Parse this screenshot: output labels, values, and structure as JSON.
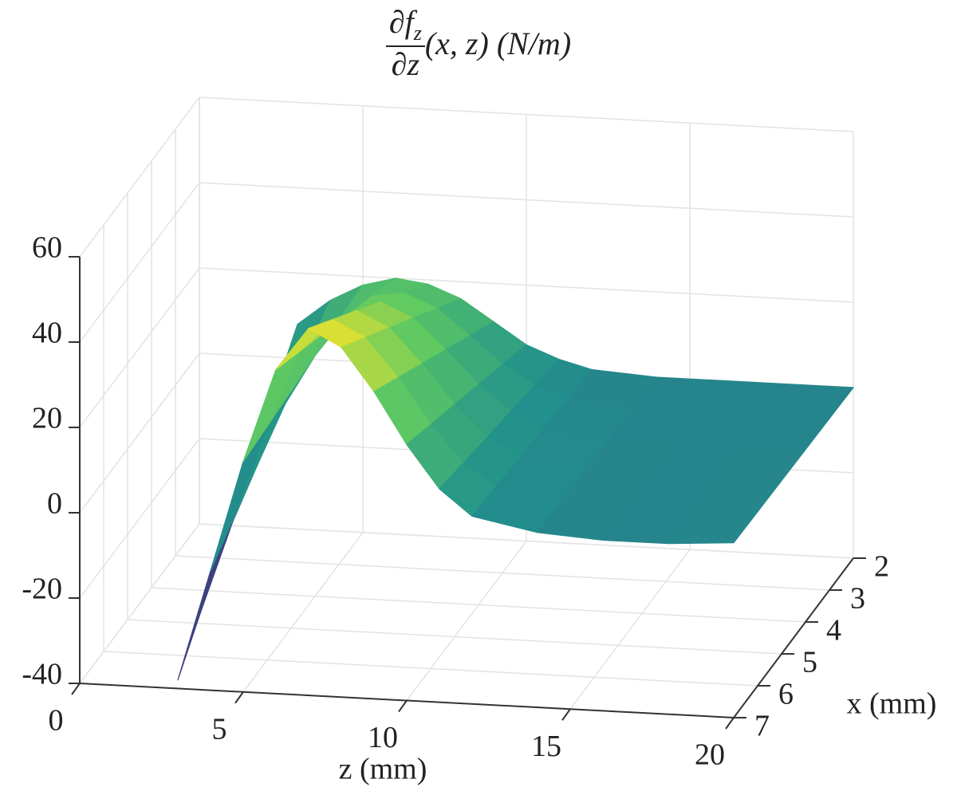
{
  "chart_data": {
    "type": "surface",
    "title": {
      "numerator": "∂f",
      "numerator_sub": "z",
      "denominator": "∂z",
      "rest": "(x, z)  (N/m)"
    },
    "zaxis_label": "z (mm)",
    "xaxis_label": "x (mm)",
    "z": [
      3,
      4,
      5,
      6,
      7,
      8,
      9,
      10,
      11,
      12,
      14,
      16,
      18,
      20
    ],
    "x": [
      2,
      3,
      4,
      5,
      6,
      7
    ],
    "values": [
      [
        8,
        14,
        18,
        20,
        19,
        16,
        11,
        6,
        3,
        1,
        0,
        0,
        0,
        0
      ],
      [
        -1.2,
        8.8,
        17.2,
        23.2,
        24.4,
        21.2,
        15.2,
        8.8,
        4.4,
        1.6,
        0.2,
        0,
        0,
        0.2
      ],
      [
        -10.4,
        3.6,
        16.4,
        26.4,
        29.8,
        26.4,
        19.4,
        11.6,
        5.8,
        2.2,
        0.4,
        0,
        0,
        0.4
      ],
      [
        -19.6,
        -1.6,
        15.6,
        29.6,
        35.2,
        31.6,
        23.6,
        14.4,
        7.2,
        2.8,
        0.6,
        0,
        0,
        0.6
      ],
      [
        -28.8,
        -6.8,
        14.8,
        32.8,
        40.6,
        36.8,
        27.8,
        17.2,
        8.6,
        3.4,
        0.8,
        0,
        0,
        0.8
      ],
      [
        -38,
        -12,
        14,
        36,
        46,
        42,
        32,
        20,
        10,
        4,
        1,
        0,
        0,
        1
      ]
    ],
    "zlim": [
      0,
      20
    ],
    "zticks": [
      0,
      5,
      10,
      15,
      20
    ],
    "xlim": [
      2,
      7
    ],
    "xticks": [
      2,
      3,
      4,
      5,
      6,
      7
    ],
    "vlim": [
      -40,
      60
    ],
    "vticks": [
      -40,
      -20,
      0,
      20,
      40,
      60
    ],
    "grid": true,
    "colormap": [
      "#440154",
      "#3b528b",
      "#21918c",
      "#5ec962",
      "#fde725"
    ]
  }
}
